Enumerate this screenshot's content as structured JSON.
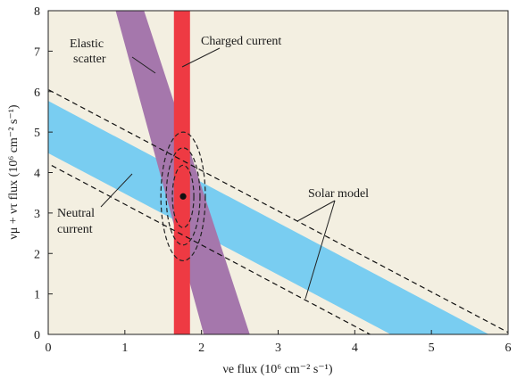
{
  "chart_data": {
    "type": "area",
    "xlabel": "νe flux (10⁶ cm⁻² s⁻¹)",
    "ylabel": "νμ + ντ flux (10⁶ cm⁻² s⁻¹)",
    "xlim": [
      0,
      6
    ],
    "ylim": [
      0,
      8
    ],
    "x_ticks": [
      "0",
      "1",
      "2",
      "3",
      "4",
      "5",
      "6"
    ],
    "y_ticks": [
      "0",
      "1",
      "2",
      "3",
      "4",
      "5",
      "6",
      "7",
      "8"
    ],
    "grid": false,
    "colors": {
      "background": "#f3efe1",
      "charged_current": "#ee3a43",
      "elastic_scatter": "#a577ac",
      "neutral_current": "#79cdf1",
      "contours": "#222222"
    },
    "bands": [
      {
        "id": "charged_current",
        "kind": "vertical",
        "x_range": [
          1.64,
          1.85
        ]
      },
      {
        "id": "elastic_scatter",
        "kind": "diagonal",
        "top_x_range": [
          0.88,
          1.25
        ],
        "bottom_x_range": [
          2.03,
          2.63
        ]
      },
      {
        "id": "neutral_current",
        "kind": "diagonal",
        "lower_edge": [
          [
            0,
            4.48
          ],
          [
            4.47,
            0
          ]
        ],
        "upper_edge": [
          [
            0,
            5.77
          ],
          [
            5.75,
            0
          ]
        ]
      }
    ],
    "solar_model_lines": [
      [
        [
          0,
          4.22
        ],
        [
          4.2,
          0
        ]
      ],
      [
        [
          0,
          6.05
        ],
        [
          6.05,
          0
        ]
      ]
    ],
    "best_fit_point": {
      "x": 1.76,
      "y": 3.41
    },
    "contours": [
      {
        "cx": 1.76,
        "cy": 3.41,
        "rx": 0.14,
        "ry": 0.77
      },
      {
        "cx": 1.76,
        "cy": 3.41,
        "rx": 0.22,
        "ry": 1.2
      },
      {
        "cx": 1.76,
        "cy": 3.41,
        "rx": 0.29,
        "ry": 1.59
      }
    ],
    "annotations": {
      "elastic": [
        "Elastic",
        "scatter"
      ],
      "charged": "Charged current",
      "neutral": [
        "Neutral",
        "current"
      ],
      "solar": "Solar model"
    }
  }
}
